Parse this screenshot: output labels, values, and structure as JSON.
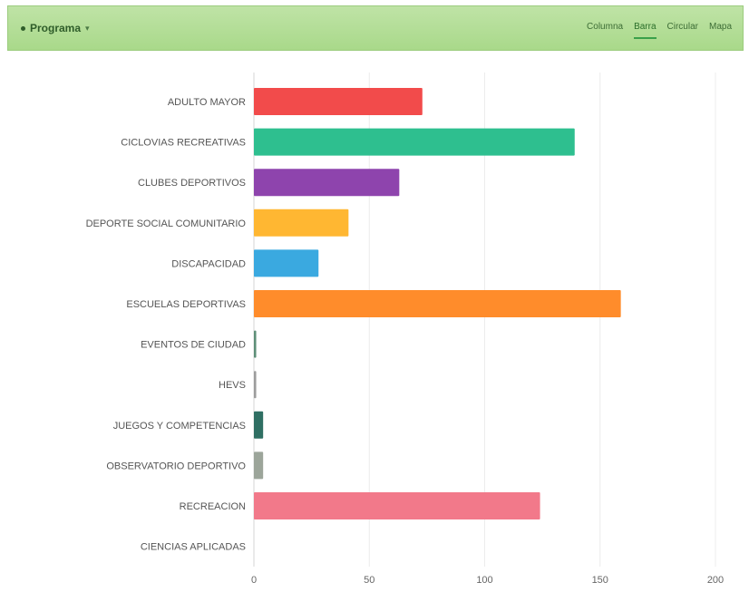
{
  "toolbar": {
    "dropdown_label": "Programa",
    "tabs": [
      "Columna",
      "Barra",
      "Circular",
      "Mapa"
    ],
    "active_tab": "Barra"
  },
  "chart_data": {
    "type": "bar",
    "orientation": "horizontal",
    "categories": [
      "ADULTO MAYOR",
      "CICLOVIAS RECREATIVAS",
      "CLUBES DEPORTIVOS",
      "DEPORTE SOCIAL COMUNITARIO",
      "DISCAPACIDAD",
      "ESCUELAS DEPORTIVAS",
      "EVENTOS DE CIUDAD",
      "HEVS",
      "JUEGOS Y COMPETENCIAS",
      "OBSERVATORIO DEPORTIVO",
      "RECREACION",
      "CIENCIAS APLICADAS"
    ],
    "values": [
      73,
      139,
      63,
      41,
      28,
      159,
      1,
      1,
      4,
      4,
      124,
      0
    ],
    "colors": [
      "#f24b4b",
      "#2ebf8f",
      "#8e44ad",
      "#ffb732",
      "#3aa9e0",
      "#ff8c2b",
      "#5e8f78",
      "#9c9c9c",
      "#2f6f63",
      "#9ca59a",
      "#f2798a",
      "#cccccc"
    ],
    "xlim": [
      0,
      200
    ],
    "xticks": [
      0,
      50,
      100,
      150,
      200
    ],
    "grid": true
  }
}
